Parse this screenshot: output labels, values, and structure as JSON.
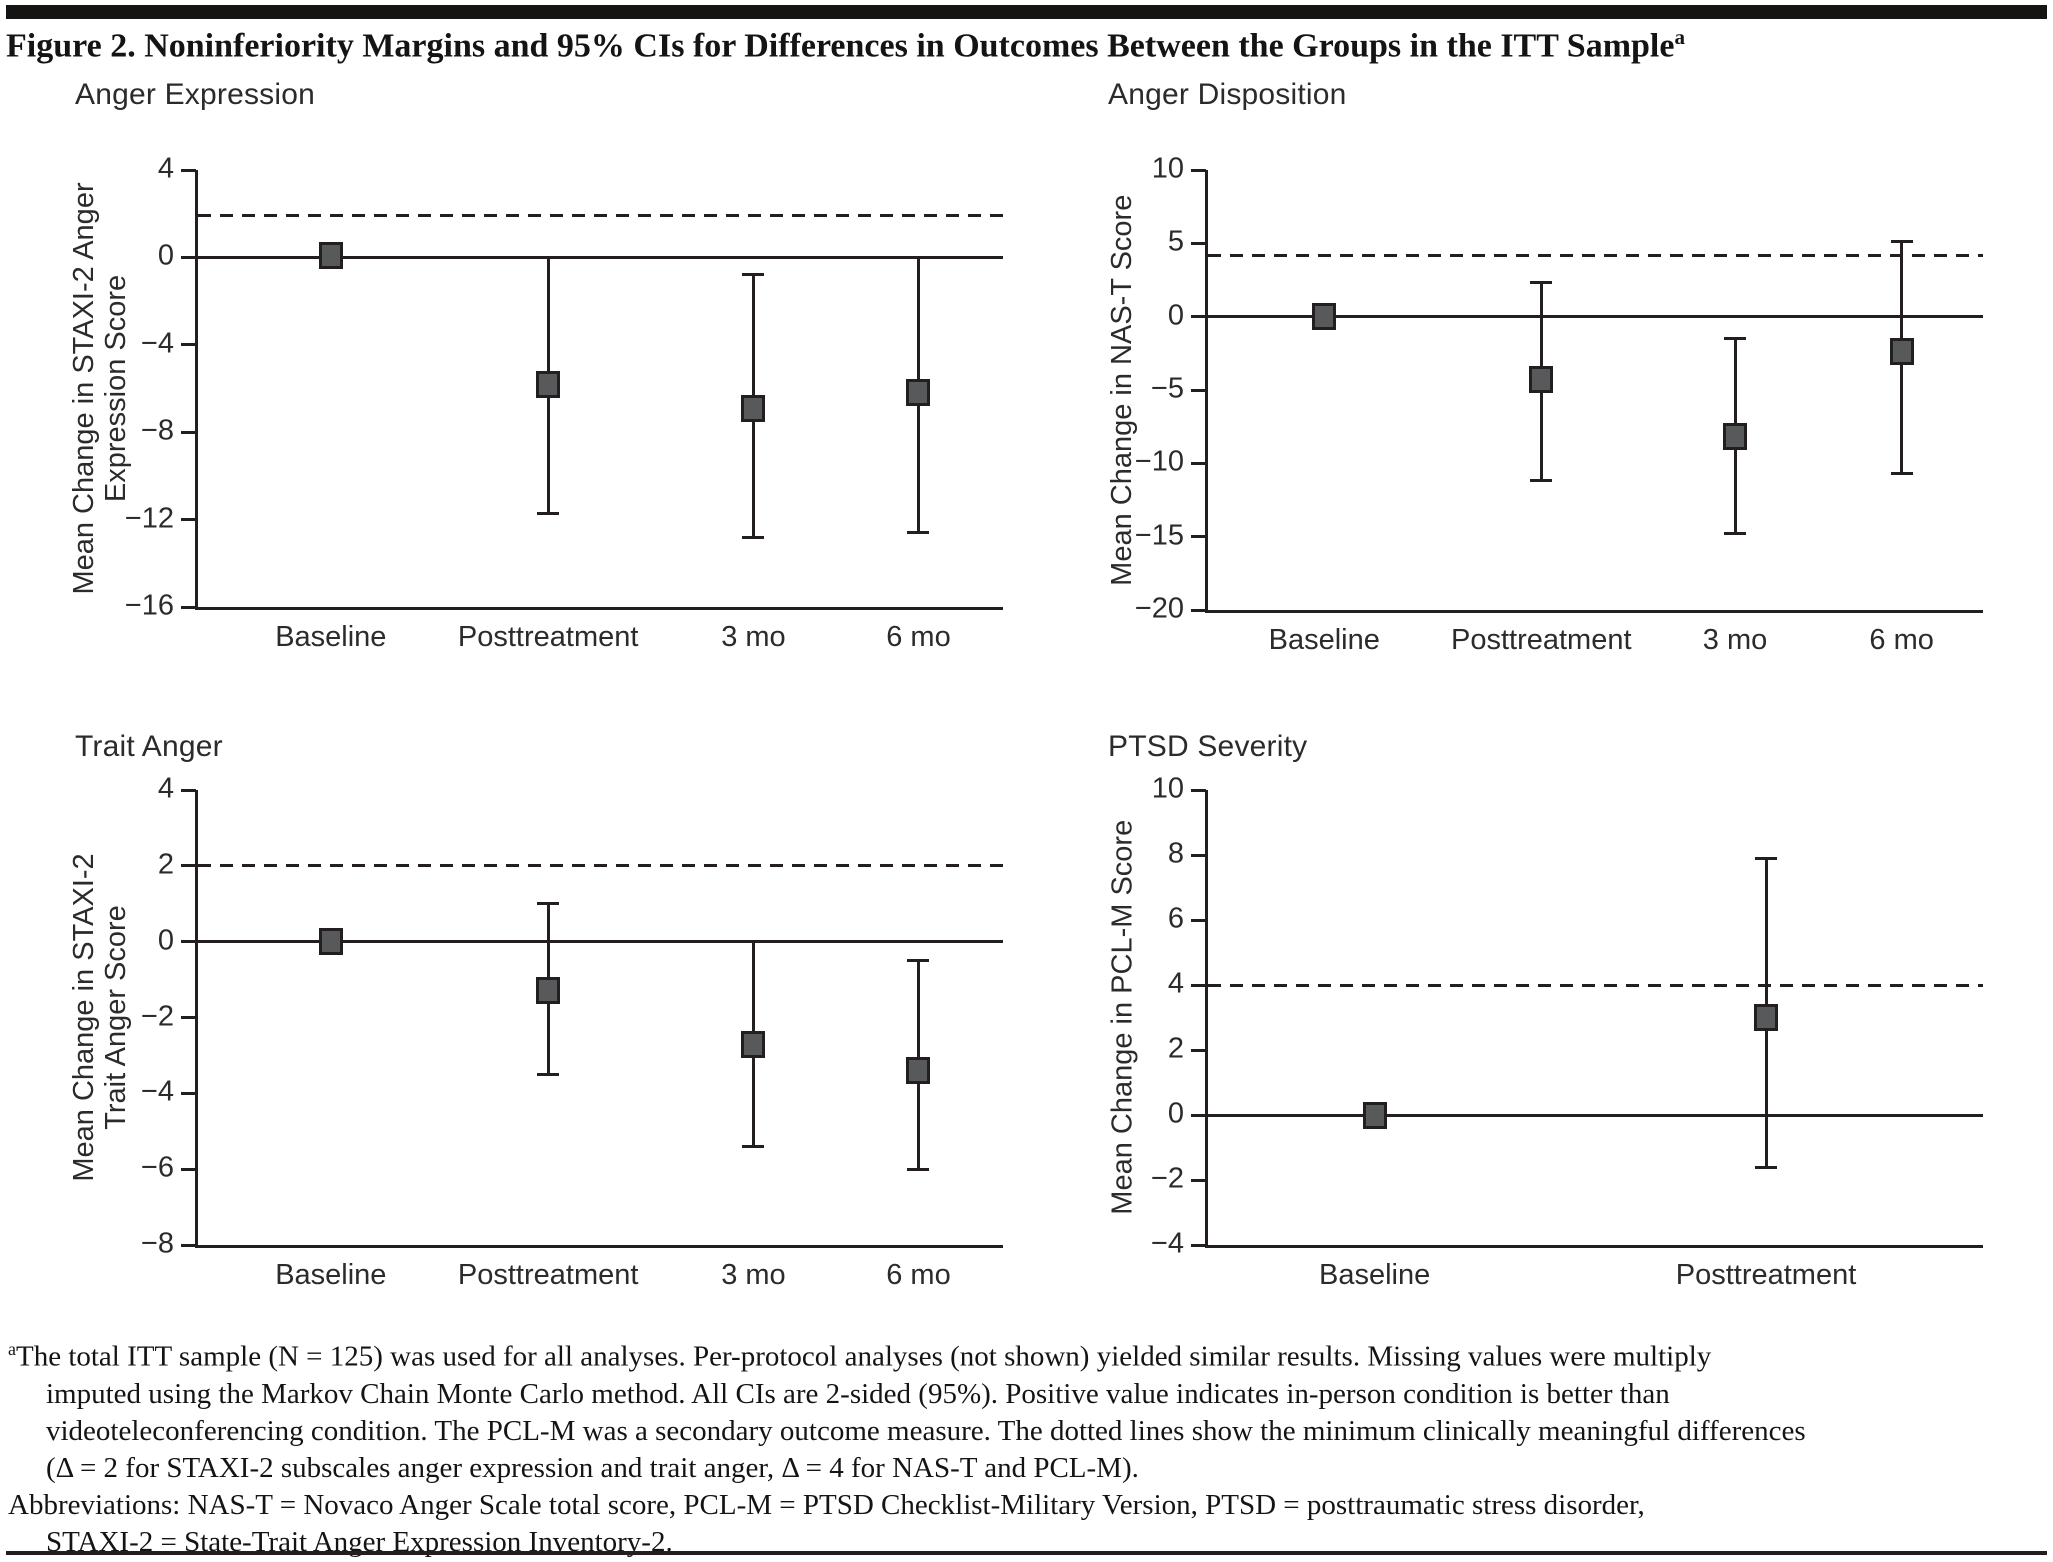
{
  "page": {
    "title": "Figure 2. Noninferiority Margins and 95% CIs for Differences in Outcomes Between the Groups in the ITT Sample",
    "title_superscript": "a"
  },
  "chart_data": [
    {
      "type": "scatter",
      "title": "Anger Expression",
      "ylabel_lines": [
        "Mean Change in STAXI-2 Anger",
        "Expression Score"
      ],
      "ylim": [
        -16,
        4
      ],
      "yticks": [
        4,
        0,
        -4,
        -8,
        -12,
        -16
      ],
      "margin_line_y": 1.9,
      "zero_line": true,
      "categories": [
        "Baseline",
        "Posttreatment",
        "3 mo",
        "6 mo"
      ],
      "points": [
        {
          "category": "Baseline",
          "mean": 0.1,
          "ci_high": null,
          "ci_low": null
        },
        {
          "category": "Posttreatment",
          "mean": -5.8,
          "ci_high": 0.0,
          "ci_low": -11.7
        },
        {
          "category": "3 mo",
          "mean": -6.9,
          "ci_high": -0.8,
          "ci_low": -12.8
        },
        {
          "category": "6 mo",
          "mean": -6.2,
          "ci_high": 0.0,
          "ci_low": -12.6
        }
      ]
    },
    {
      "type": "scatter",
      "title": "Anger Disposition",
      "ylabel_lines": [
        "Mean Change in NAS-T Score"
      ],
      "ylim": [
        -20,
        10
      ],
      "yticks": [
        10,
        5,
        0,
        -5,
        -10,
        -15,
        -20
      ],
      "margin_line_y": 4.2,
      "zero_line": true,
      "categories": [
        "Baseline",
        "Posttreatment",
        "3 mo",
        "6 mo"
      ],
      "points": [
        {
          "category": "Baseline",
          "mean": 0.0,
          "ci_high": null,
          "ci_low": null
        },
        {
          "category": "Posttreatment",
          "mean": -4.3,
          "ci_high": 2.3,
          "ci_low": -11.2
        },
        {
          "category": "3 mo",
          "mean": -8.2,
          "ci_high": -1.5,
          "ci_low": -14.8
        },
        {
          "category": "6 mo",
          "mean": -2.4,
          "ci_high": 5.1,
          "ci_low": -10.7
        }
      ]
    },
    {
      "type": "scatter",
      "title": "Trait Anger",
      "ylabel_lines": [
        "Mean Change in STAXI-2",
        "Trait Anger Score"
      ],
      "ylim": [
        -8,
        4
      ],
      "yticks": [
        4,
        2,
        0,
        -2,
        -4,
        -6,
        -8
      ],
      "margin_line_y": 2.0,
      "zero_line": true,
      "categories": [
        "Baseline",
        "Posttreatment",
        "3 mo",
        "6 mo"
      ],
      "points": [
        {
          "category": "Baseline",
          "mean": 0.0,
          "ci_high": null,
          "ci_low": null
        },
        {
          "category": "Posttreatment",
          "mean": -1.3,
          "ci_high": 1.0,
          "ci_low": -3.5
        },
        {
          "category": "3 mo",
          "mean": -2.7,
          "ci_high": 0.0,
          "ci_low": -5.4
        },
        {
          "category": "6 mo",
          "mean": -3.4,
          "ci_high": -0.5,
          "ci_low": -6.0
        }
      ]
    },
    {
      "type": "scatter",
      "title": "PTSD Severity",
      "ylabel_lines": [
        "Mean Change in PCL-M Score"
      ],
      "ylim": [
        -4,
        10
      ],
      "yticks": [
        10,
        8,
        6,
        4,
        2,
        0,
        -2,
        -4
      ],
      "margin_line_y": 4.0,
      "zero_line": true,
      "categories": [
        "Baseline",
        "Posttreatment"
      ],
      "points": [
        {
          "category": "Baseline",
          "mean": 0.0,
          "ci_high": null,
          "ci_low": null
        },
        {
          "category": "Posttreatment",
          "mean": 3.0,
          "ci_high": 7.9,
          "ci_low": -1.6
        }
      ]
    }
  ],
  "footnote": {
    "marker": "a",
    "lines": [
      "The total ITT sample (N = 125) was used for all analyses. Per-protocol analyses (not shown) yielded similar results. Missing values were multiply",
      "imputed using the Markov Chain Monte Carlo method. All CIs are 2-sided (95%). Positive value indicates in-person condition is better than",
      "videoteleconferencing condition. The PCL-M was a secondary outcome measure. The dotted lines show the minimum clinically meaningful differences",
      "(Δ = 2 for STAXI-2 subscales anger expression and trait anger, Δ = 4 for NAS-T and PCL-M).",
      "Abbreviations: NAS-T = Novaco Anger Scale total score, PCL-M = PTSD Checklist-Military Version, PTSD = posttraumatic stress disorder,",
      "STAXI-2 = State-Trait Anger Expression Inventory-2."
    ]
  },
  "colors": {
    "marker_fill": "#58595b",
    "line": "#231f20",
    "top_bar": "#161412"
  }
}
